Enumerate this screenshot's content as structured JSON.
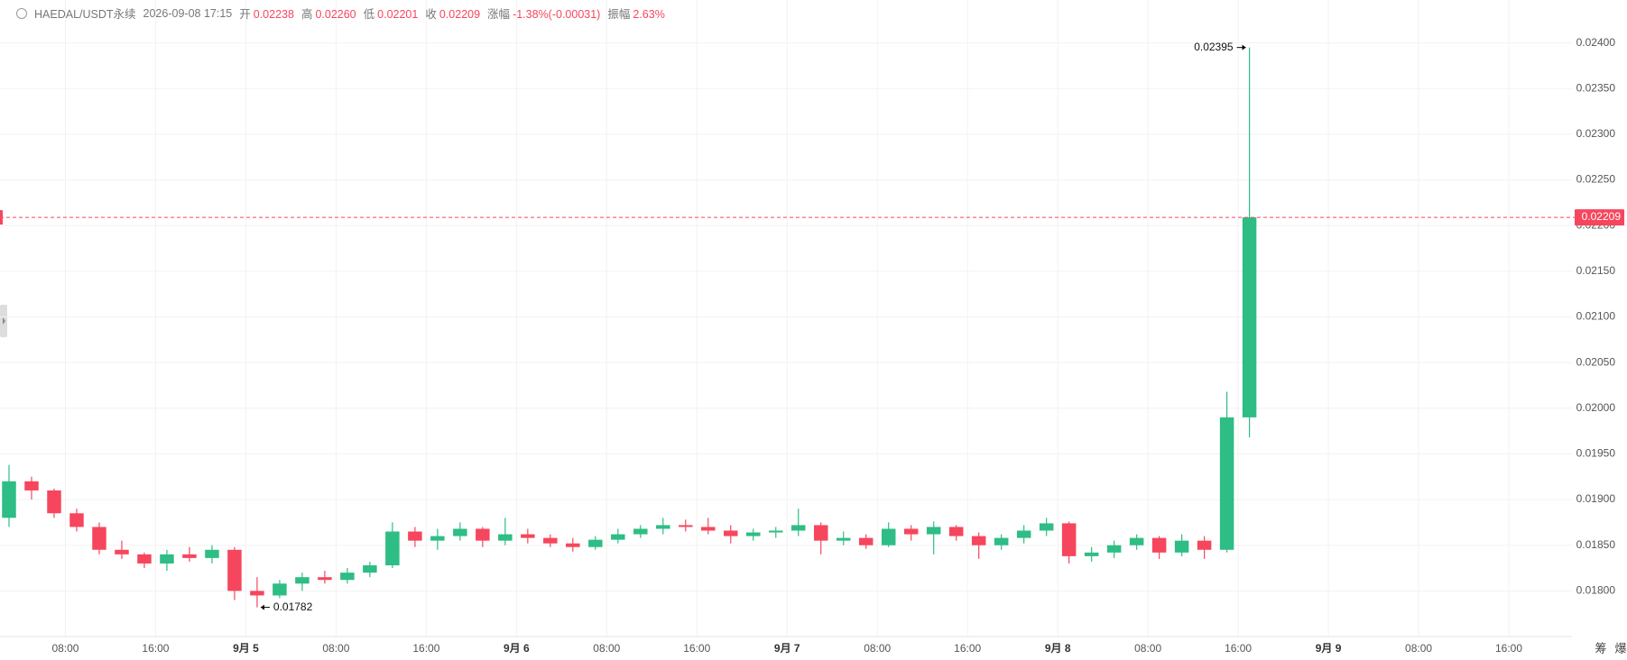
{
  "chart_data": {
    "type": "candlestick",
    "header": {
      "symbol": "HAEDAL/USDT永续",
      "time": "2026-09-08 17:15",
      "items": [
        {
          "label": "开",
          "value": "0.02238"
        },
        {
          "label": "高",
          "value": "0.02260"
        },
        {
          "label": "低",
          "value": "0.02201"
        },
        {
          "label": "收",
          "value": "0.02209"
        },
        {
          "label": "涨幅",
          "value": "-1.38%(-0.00031)"
        },
        {
          "label": "振幅",
          "value": "2.63%"
        }
      ]
    },
    "x": [
      "2026-09-04 02:00",
      "2026-09-04 04:00",
      "2026-09-04 06:00",
      "2026-09-04 08:00",
      "2026-09-04 10:00",
      "2026-09-04 12:00",
      "2026-09-04 14:00",
      "2026-09-04 16:00",
      "2026-09-04 18:00",
      "2026-09-04 20:00",
      "2026-09-04 22:00",
      "2026-09-05 00:00",
      "2026-09-05 02:00",
      "2026-09-05 04:00",
      "2026-09-05 06:00",
      "2026-09-05 08:00",
      "2026-09-05 10:00",
      "2026-09-05 12:00",
      "2026-09-05 14:00",
      "2026-09-05 16:00",
      "2026-09-05 18:00",
      "2026-09-05 20:00",
      "2026-09-05 22:00",
      "2026-09-06 00:00",
      "2026-09-06 02:00",
      "2026-09-06 04:00",
      "2026-09-06 06:00",
      "2026-09-06 08:00",
      "2026-09-06 10:00",
      "2026-09-06 12:00",
      "2026-09-06 14:00",
      "2026-09-06 16:00",
      "2026-09-06 18:00",
      "2026-09-06 20:00",
      "2026-09-06 22:00",
      "2026-09-07 00:00",
      "2026-09-07 02:00",
      "2026-09-07 04:00",
      "2026-09-07 06:00",
      "2026-09-07 08:00",
      "2026-09-07 10:00",
      "2026-09-07 12:00",
      "2026-09-07 14:00",
      "2026-09-07 16:00",
      "2026-09-07 18:00",
      "2026-09-07 20:00",
      "2026-09-07 22:00",
      "2026-09-08 00:00",
      "2026-09-08 02:00",
      "2026-09-08 04:00",
      "2026-09-08 06:00",
      "2026-09-08 08:00",
      "2026-09-08 10:00",
      "2026-09-08 12:00",
      "2026-09-08 14:00",
      "2026-09-08 16:00"
    ],
    "open": [
      0.0188,
      0.0192,
      0.0191,
      0.01885,
      0.0187,
      0.01845,
      0.0184,
      0.0183,
      0.0184,
      0.01836,
      0.01845,
      0.018,
      0.01795,
      0.01808,
      0.01815,
      0.01812,
      0.0182,
      0.01828,
      0.01865,
      0.01855,
      0.0186,
      0.01868,
      0.01855,
      0.01862,
      0.01858,
      0.01852,
      0.01848,
      0.01856,
      0.01862,
      0.01868,
      0.01872,
      0.0187,
      0.01866,
      0.0186,
      0.01864,
      0.01866,
      0.01872,
      0.01855,
      0.01858,
      0.0185,
      0.01868,
      0.01862,
      0.0187,
      0.0186,
      0.0185,
      0.01858,
      0.01866,
      0.01874,
      0.01838,
      0.01842,
      0.0185,
      0.01858,
      0.01842,
      0.01855,
      0.01845,
      0.0199
    ],
    "high": [
      0.01938,
      0.01925,
      0.01912,
      0.0189,
      0.01875,
      0.01855,
      0.01842,
      0.01845,
      0.01848,
      0.0185,
      0.01848,
      0.01815,
      0.01812,
      0.0182,
      0.01822,
      0.01825,
      0.01832,
      0.01875,
      0.0187,
      0.01868,
      0.01875,
      0.0187,
      0.0188,
      0.01868,
      0.01862,
      0.01858,
      0.0186,
      0.01868,
      0.01872,
      0.0188,
      0.01878,
      0.0188,
      0.01872,
      0.01868,
      0.0187,
      0.0189,
      0.01875,
      0.01865,
      0.01862,
      0.01875,
      0.01872,
      0.01876,
      0.01872,
      0.01864,
      0.01862,
      0.01872,
      0.0188,
      0.01876,
      0.01848,
      0.01855,
      0.01862,
      0.0186,
      0.01862,
      0.0186,
      0.02018,
      0.02395
    ],
    "low": [
      0.0187,
      0.019,
      0.0188,
      0.01865,
      0.0184,
      0.01835,
      0.01825,
      0.01822,
      0.01832,
      0.0183,
      0.0179,
      0.01782,
      0.01792,
      0.018,
      0.01808,
      0.01808,
      0.01815,
      0.01825,
      0.01848,
      0.01845,
      0.01855,
      0.01848,
      0.0185,
      0.01852,
      0.01848,
      0.01843,
      0.01845,
      0.01852,
      0.01858,
      0.01862,
      0.01865,
      0.01862,
      0.01852,
      0.01855,
      0.01858,
      0.0186,
      0.0184,
      0.0185,
      0.01846,
      0.01848,
      0.01855,
      0.0184,
      0.01855,
      0.01835,
      0.01845,
      0.01852,
      0.0186,
      0.0183,
      0.01832,
      0.01836,
      0.01845,
      0.01835,
      0.01838,
      0.01835,
      0.01842,
      0.01968
    ],
    "close": [
      0.0192,
      0.0191,
      0.01885,
      0.0187,
      0.01845,
      0.0184,
      0.0183,
      0.0184,
      0.01836,
      0.01845,
      0.018,
      0.01795,
      0.01808,
      0.01815,
      0.01812,
      0.0182,
      0.01828,
      0.01865,
      0.01855,
      0.0186,
      0.01868,
      0.01855,
      0.01862,
      0.01858,
      0.01852,
      0.01848,
      0.01856,
      0.01862,
      0.01868,
      0.01872,
      0.0187,
      0.01866,
      0.0186,
      0.01864,
      0.01866,
      0.01872,
      0.01855,
      0.01858,
      0.0185,
      0.01868,
      0.01862,
      0.0187,
      0.0186,
      0.0185,
      0.01858,
      0.01866,
      0.01874,
      0.01838,
      0.01842,
      0.0185,
      0.01858,
      0.01842,
      0.01855,
      0.01845,
      0.0199,
      0.02209
    ],
    "up_color": "#2ebd85",
    "down_color": "#f6465d",
    "xlim": [
      "2026-09-04 02:12",
      "2026-09-09 21:36"
    ],
    "ylim": [
      0.0175,
      0.02447
    ],
    "yticks": [
      {
        "value": 0.018,
        "label": "0.01800"
      },
      {
        "value": 0.0185,
        "label": "0.01850"
      },
      {
        "value": 0.019,
        "label": "0.01900"
      },
      {
        "value": 0.0195,
        "label": "0.01950"
      },
      {
        "value": 0.02,
        "label": "0.02000"
      },
      {
        "value": 0.0205,
        "label": "0.02050"
      },
      {
        "value": 0.021,
        "label": "0.02100"
      },
      {
        "value": 0.0215,
        "label": "0.02150"
      },
      {
        "value": 0.022,
        "label": "0.02200"
      },
      {
        "value": 0.0225,
        "label": "0.02250"
      },
      {
        "value": 0.023,
        "label": "0.02300"
      },
      {
        "value": 0.0235,
        "label": "0.02350"
      },
      {
        "value": 0.024,
        "label": "0.02400"
      }
    ],
    "xticks": [
      {
        "value": "2026-09-04 08:00",
        "label": "08:00"
      },
      {
        "value": "2026-09-04 16:00",
        "label": "16:00"
      },
      {
        "value": "2026-09-05 00:00",
        "label": "9月 5"
      },
      {
        "value": "2026-09-05 08:00",
        "label": "08:00"
      },
      {
        "value": "2026-09-05 16:00",
        "label": "16:00"
      },
      {
        "value": "2026-09-06 00:00",
        "label": "9月 6"
      },
      {
        "value": "2026-09-06 08:00",
        "label": "08:00"
      },
      {
        "value": "2026-09-06 16:00",
        "label": "16:00"
      },
      {
        "value": "2026-09-07 00:00",
        "label": "9月 7"
      },
      {
        "value": "2026-09-07 08:00",
        "label": "08:00"
      },
      {
        "value": "2026-09-07 16:00",
        "label": "16:00"
      },
      {
        "value": "2026-09-08 00:00",
        "label": "9月 8"
      },
      {
        "value": "2026-09-08 08:00",
        "label": "08:00"
      },
      {
        "value": "2026-09-08 16:00",
        "label": "16:00"
      },
      {
        "value": "2026-09-09 00:00",
        "label": "9月 9"
      },
      {
        "value": "2026-09-09 08:00",
        "label": "08:00"
      },
      {
        "value": "2026-09-09 16:00",
        "label": "16:00"
      }
    ],
    "grid": true,
    "price_line": {
      "value": 0.02209,
      "label": "0.02209"
    },
    "high_annotation": {
      "value": 0.02395,
      "label": "0.02395"
    },
    "low_annotation": {
      "value": 0.01782,
      "label": "0.01782"
    },
    "toolbar": [
      "筹",
      "爆"
    ]
  }
}
